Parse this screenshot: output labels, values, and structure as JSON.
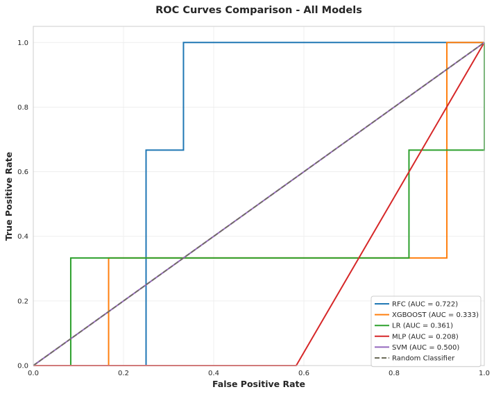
{
  "chart_data": {
    "type": "line",
    "title": "ROC Curves Comparison - All Models",
    "xlabel": "False Positive Rate",
    "ylabel": "True Positive Rate",
    "xlim": [
      0,
      1
    ],
    "ylim": [
      0,
      1.05
    ],
    "x_ticks": [
      "0.0",
      "0.2",
      "0.4",
      "0.6",
      "0.8",
      "1.0"
    ],
    "y_ticks": [
      "0.0",
      "0.2",
      "0.4",
      "0.6",
      "0.8",
      "1.0"
    ],
    "grid": true,
    "legend_position": "lower-right",
    "series": [
      {
        "name": "RFC (AUC = 0.722)",
        "color": "#1f77b4",
        "dashed": false,
        "x": [
          0,
          0.25,
          0.25,
          0.25,
          0.333,
          0.333,
          1.0
        ],
        "y": [
          0,
          0,
          0,
          0.667,
          0.667,
          1.0,
          1.0
        ]
      },
      {
        "name": "XGBOOST (AUC = 0.333)",
        "color": "#ff7f0e",
        "dashed": false,
        "x": [
          0,
          0.167,
          0.167,
          0.917,
          0.917,
          1.0
        ],
        "y": [
          0,
          0,
          0.333,
          0.333,
          1.0,
          1.0
        ]
      },
      {
        "name": "LR (AUC = 0.361)",
        "color": "#2ca02c",
        "dashed": false,
        "x": [
          0,
          0.083,
          0.083,
          0.833,
          0.833,
          1.0,
          1.0
        ],
        "y": [
          0,
          0,
          0.333,
          0.333,
          0.667,
          0.667,
          1.0
        ]
      },
      {
        "name": "MLP (AUC = 0.208)",
        "color": "#d62728",
        "dashed": false,
        "x": [
          0,
          0.583,
          1.0
        ],
        "y": [
          0,
          0,
          1.0
        ]
      },
      {
        "name": "SVM (AUC = 0.500)",
        "color": "#9467bd",
        "dashed": false,
        "x": [
          0,
          1.0
        ],
        "y": [
          0,
          1.0
        ]
      },
      {
        "name": "Random Classifier",
        "color": "#6b6b59",
        "dashed": true,
        "x": [
          0,
          1.0
        ],
        "y": [
          0,
          1.0
        ]
      }
    ]
  }
}
